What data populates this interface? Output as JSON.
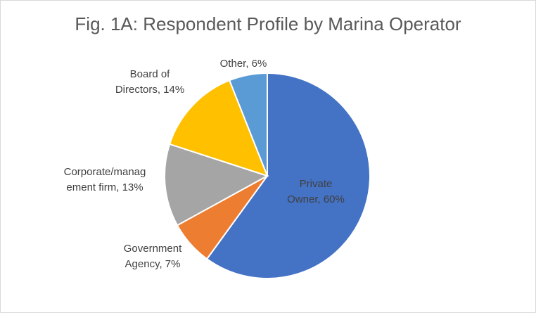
{
  "chart_data": {
    "type": "pie",
    "title": "Fig. 1A: Respondent Profile by Marina Operator",
    "slices": [
      {
        "label": "Private Owner",
        "value": 60,
        "color": "#4472c4",
        "label_lines": [
          "Private",
          "Owner, 60%"
        ]
      },
      {
        "label": "Government Agency",
        "value": 7,
        "color": "#ed7d31",
        "label_lines": [
          "Government",
          "Agency, 7%"
        ]
      },
      {
        "label": "Corporate/management firm",
        "value": 13,
        "color": "#a5a5a5",
        "label_lines": [
          "Corporate/manag",
          "ement firm, 13%"
        ]
      },
      {
        "label": "Board of Directors",
        "value": 14,
        "color": "#ffc000",
        "label_lines": [
          "Board of",
          "Directors, 14%"
        ]
      },
      {
        "label": "Other",
        "value": 6,
        "color": "#5b9bd5",
        "label_lines": [
          "Other, 6%"
        ]
      }
    ],
    "value_suffix": "%",
    "legend": "none"
  }
}
